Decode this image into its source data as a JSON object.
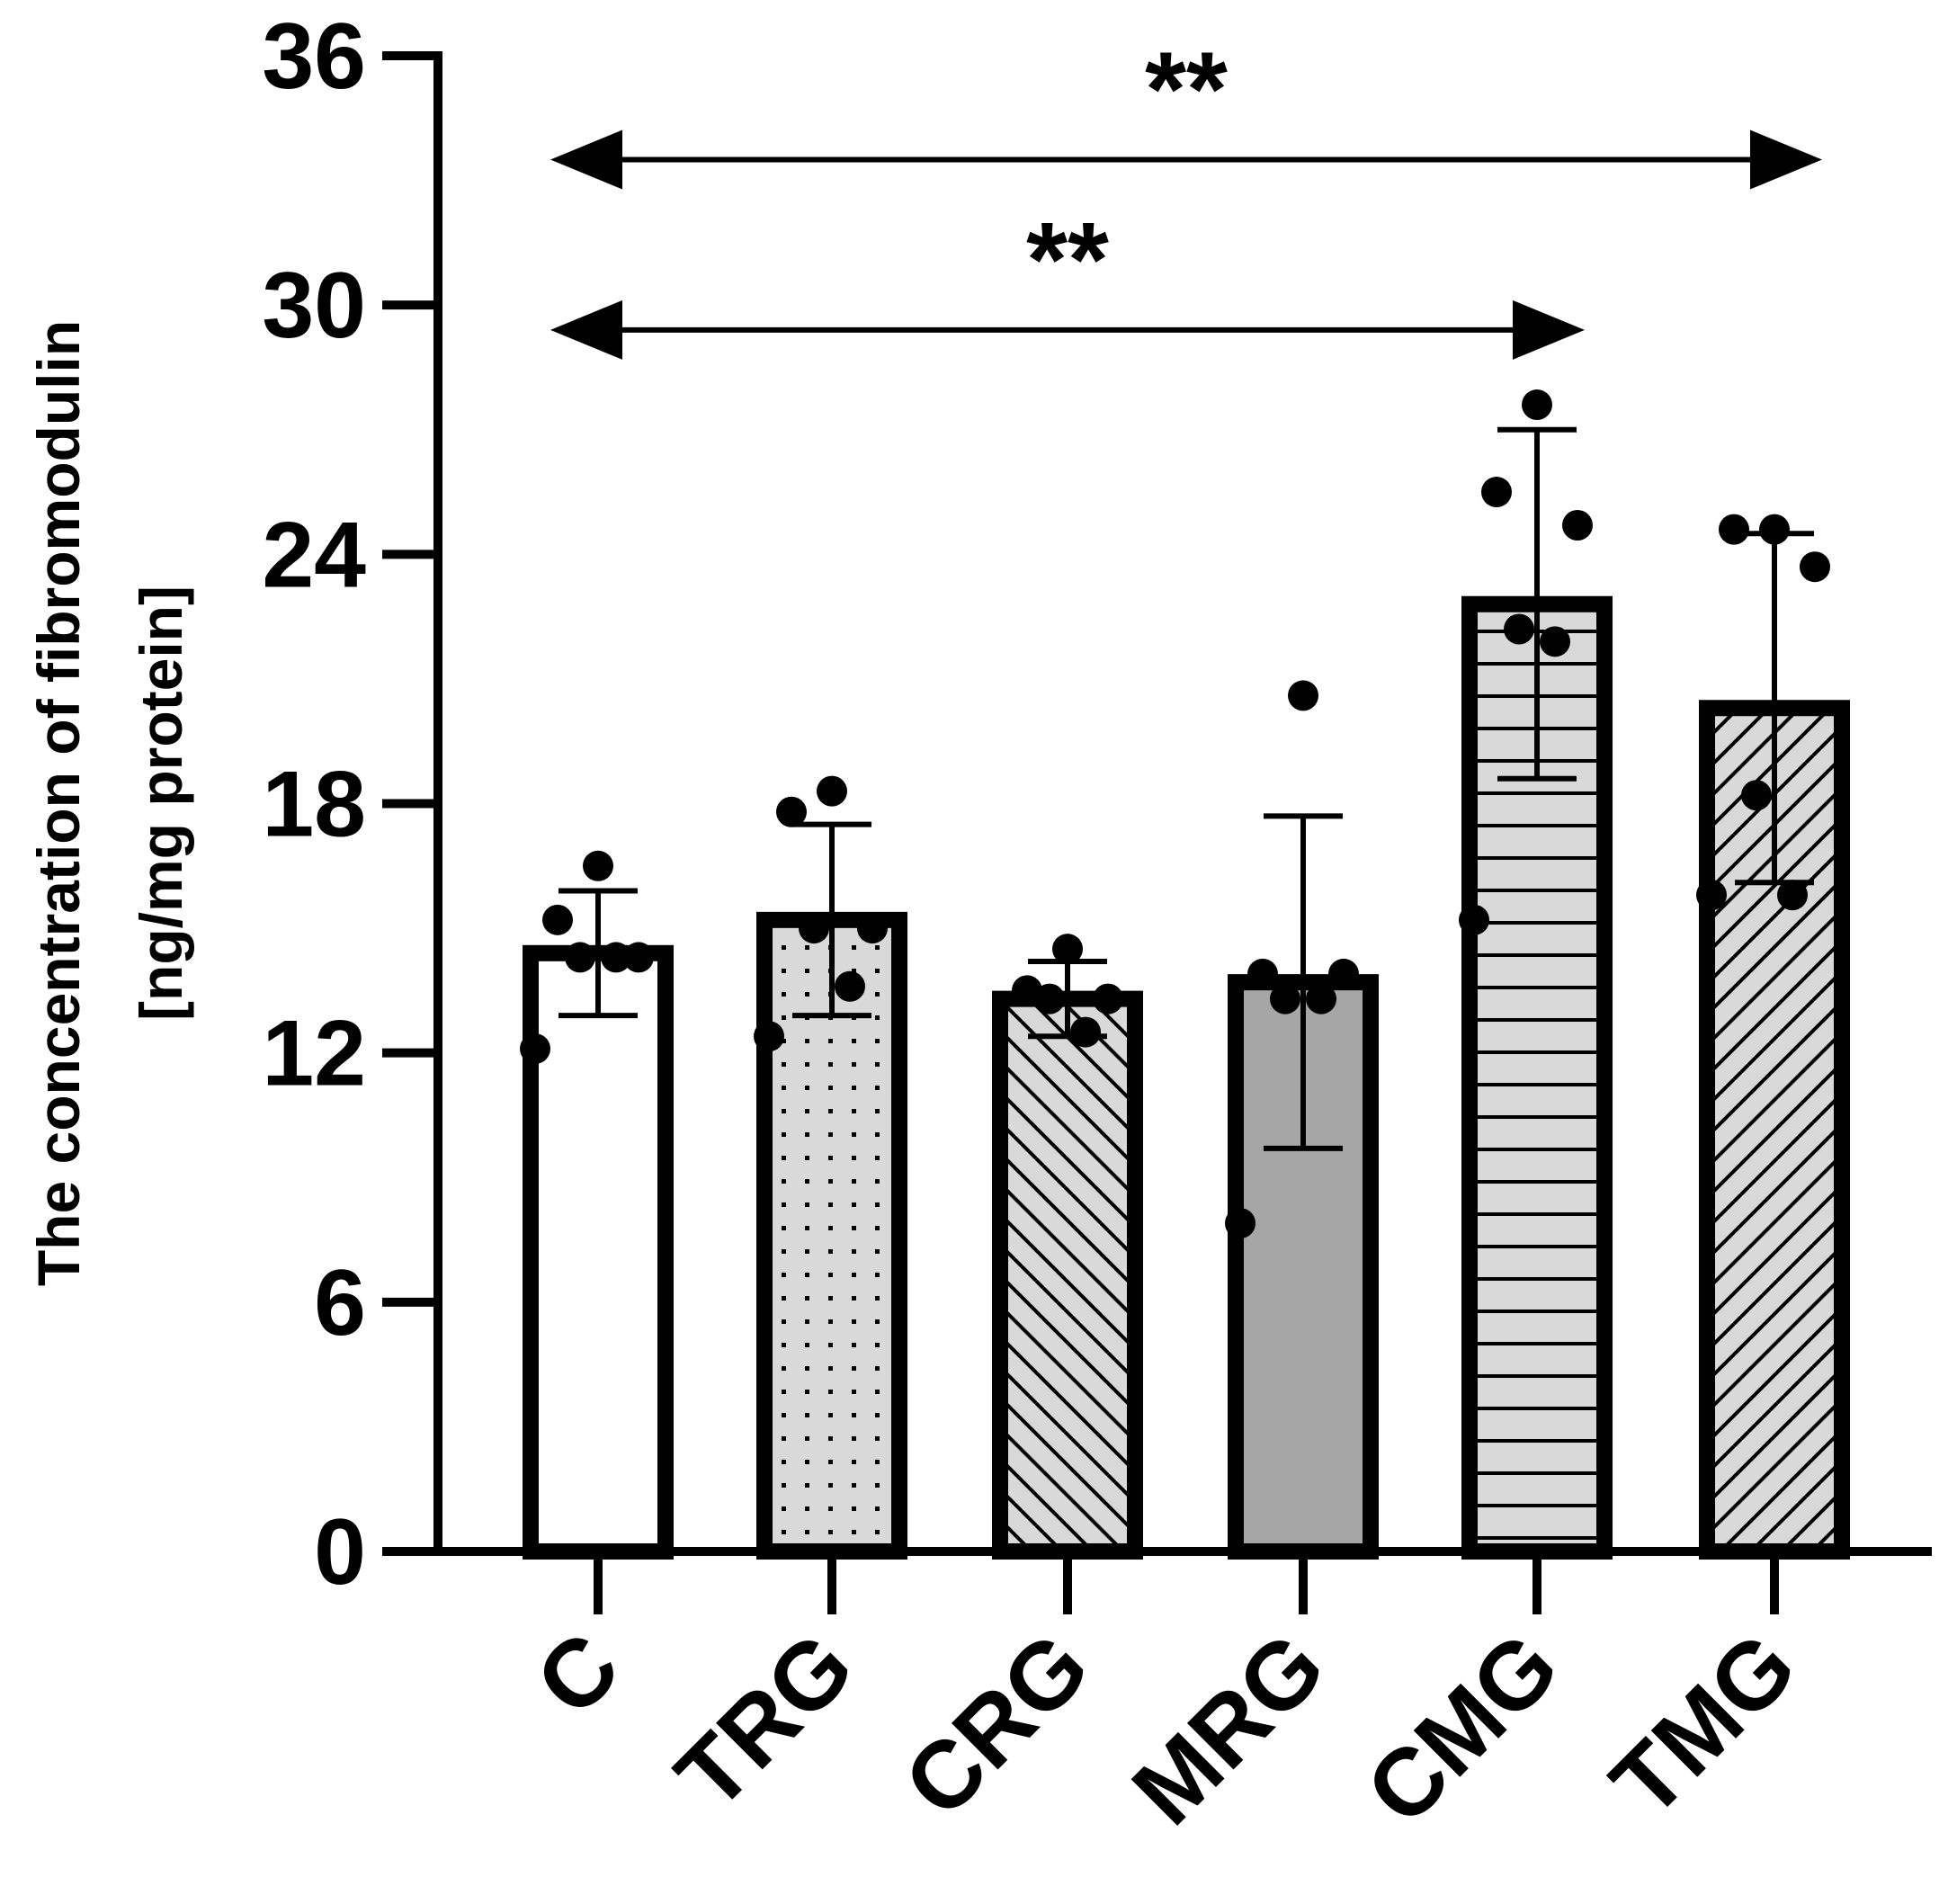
{
  "chart_data": {
    "type": "bar",
    "title": "",
    "xlabel": "",
    "ylabel": "The concentration of fibromodulin",
    "ylabel_line2": "[ng/mg protein]",
    "categories": [
      "C",
      "TRG",
      "CRG",
      "MRG",
      "CMG",
      "TMG"
    ],
    "means": [
      14.4,
      15.2,
      13.3,
      13.7,
      22.8,
      20.3
    ],
    "sd": [
      1.5,
      2.3,
      0.9,
      4.0,
      4.2,
      4.2
    ],
    "points": [
      [
        16.5,
        15.2,
        14.3,
        14.3,
        14.3,
        12.1
      ],
      [
        18.3,
        17.8,
        15.0,
        15.0,
        13.6,
        12.4
      ],
      [
        14.5,
        13.5,
        13.3,
        13.3,
        12.5
      ],
      [
        20.6,
        13.9,
        13.9,
        13.3,
        13.3,
        7.9
      ],
      [
        27.6,
        25.5,
        24.7,
        22.2,
        21.9,
        15.2
      ],
      [
        24.6,
        24.6,
        23.7,
        18.2,
        15.8,
        15.8
      ]
    ],
    "fills": [
      "#ffffff",
      "#d9d9d9",
      "#d9d9d9",
      "#a6a6a6",
      "#d9d9d9",
      "#d9d9d9"
    ],
    "patterns": [
      "none",
      "dots",
      "diag-back",
      "none",
      "horizontal",
      "diag-fwd"
    ],
    "ylim": [
      0,
      36
    ],
    "yticks": [
      "0",
      "6",
      "12",
      "18",
      "24",
      "30",
      "36"
    ],
    "grid": false,
    "significance": [
      {
        "from": "C",
        "to": "TMG",
        "label": "**",
        "y": 33.5
      },
      {
        "from": "C",
        "to": "CMG",
        "label": "**",
        "y": 29.4
      }
    ]
  }
}
